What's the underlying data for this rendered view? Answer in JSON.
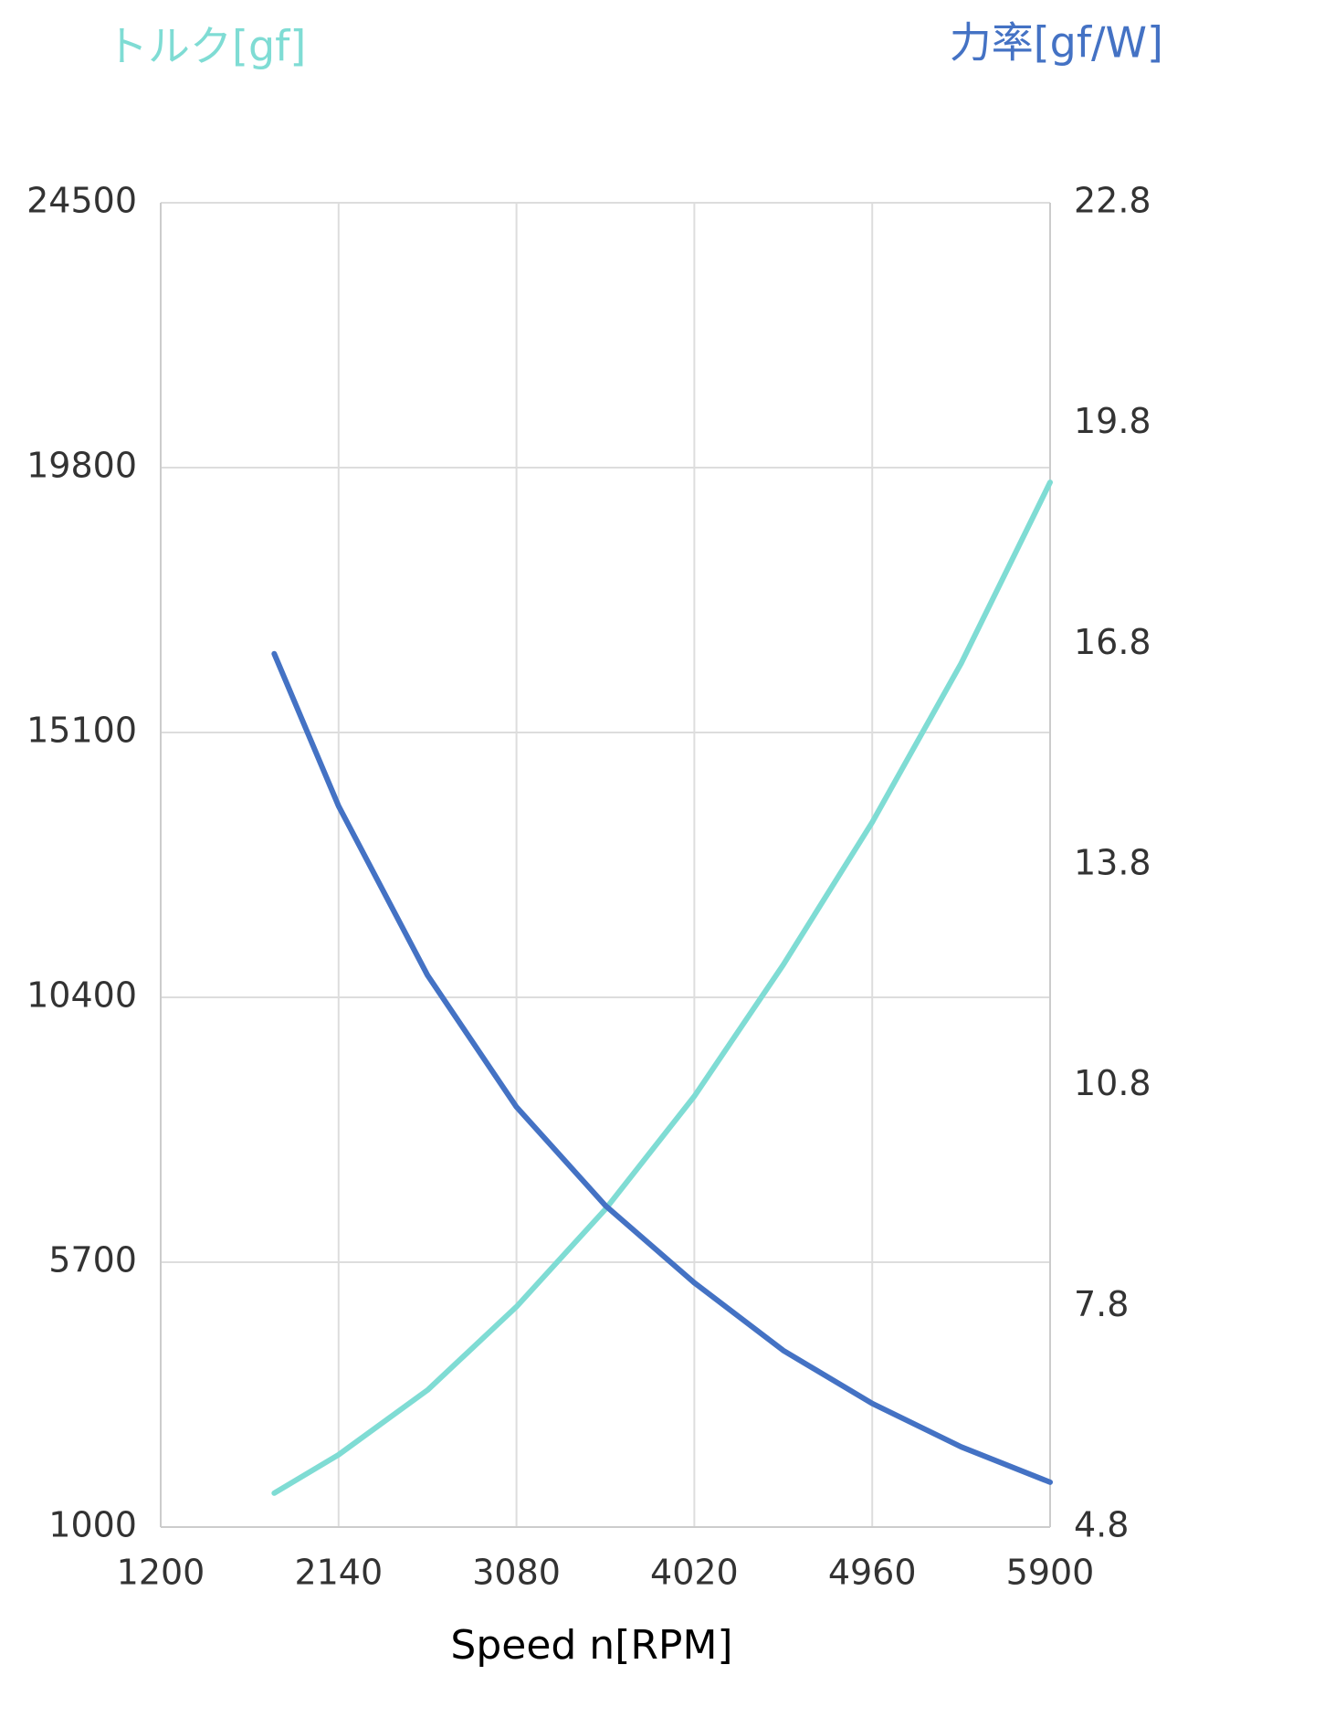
{
  "chart_data": {
    "type": "line",
    "y_title": "トルク[gf]",
    "y2_title": "力率[gf/W]",
    "x_label": "Speed n[RPM]",
    "xlim": [
      1200,
      5900
    ],
    "xticks": [
      1200,
      2140,
      3080,
      4020,
      4960,
      5900
    ],
    "ylim": [
      1000,
      24500
    ],
    "yticks": [
      1000,
      5700,
      10400,
      15100,
      19800,
      24500
    ],
    "y2lim": [
      4.8,
      22.8
    ],
    "y2ticks": [
      4.8,
      7.8,
      10.8,
      13.8,
      16.8,
      19.8,
      22.8
    ],
    "grid": true,
    "x": [
      1800,
      2140,
      2610,
      3080,
      3550,
      4020,
      4490,
      4960,
      5430,
      5900
    ],
    "series": [
      {
        "name": "トルク[gf]",
        "color": "#7fdcd4",
        "values": [
          1603,
          2284,
          3431,
          4910,
          6640,
          8645,
          10978,
          13507,
          16327,
          19539
        ]
      },
      {
        "name": "力率[gf/W]",
        "color": "#4472c4",
        "axis": "y2",
        "values": [
          16.67,
          14.6,
          12.3,
          10.51,
          9.17,
          8.12,
          7.2,
          6.48,
          5.89,
          5.41
        ]
      }
    ]
  }
}
